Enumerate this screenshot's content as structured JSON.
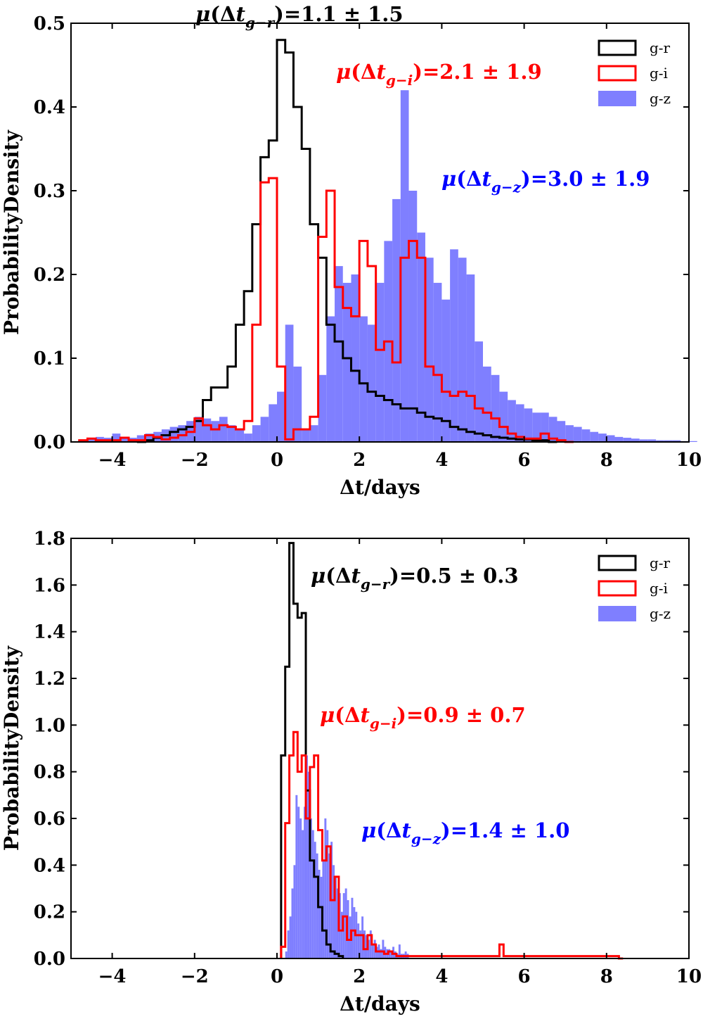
{
  "chart_data": [
    {
      "type": "histogram",
      "xlabel": "Δt/days",
      "ylabel": "ProbabilityDensity",
      "xlim": [
        -5,
        10
      ],
      "ylim": [
        0,
        0.5
      ],
      "xticks": [
        -4,
        -2,
        0,
        2,
        4,
        6,
        8,
        10
      ],
      "xtick_labels": [
        "−4",
        "−2",
        "0",
        "2",
        "4",
        "6",
        "8",
        "10"
      ],
      "yticks": [
        0.0,
        0.1,
        0.2,
        0.3,
        0.4,
        0.5
      ],
      "ytick_labels": [
        "0.0",
        "0.1",
        "0.2",
        "0.3",
        "0.4",
        "0.5"
      ],
      "legend": {
        "position": "top-right",
        "entries": [
          {
            "label": "g-r",
            "style": "step",
            "color": "#000000"
          },
          {
            "label": "g-i",
            "style": "step",
            "color": "#ff0000"
          },
          {
            "label": "g-z",
            "style": "filled",
            "color": "#7f7fff"
          }
        ]
      },
      "annotations": [
        {
          "color": "#000000",
          "sub": "g−r",
          "value": "1.1 ± 1.5"
        },
        {
          "color": "#ff0000",
          "sub": "g−i",
          "value": "2.1 ± 1.9"
        },
        {
          "color": "#0000ff",
          "sub": "g−z",
          "value": "3.0 ± 1.9"
        }
      ],
      "series": [
        {
          "name": "g-r",
          "style": "step",
          "color": "#000000",
          "x_start": -3.4,
          "bin_width": 0.2,
          "values": [
            0,
            0.002,
            0.005,
            0.008,
            0.012,
            0.015,
            0.018,
            0.025,
            0.05,
            0.065,
            0.065,
            0.09,
            0.14,
            0.18,
            0.26,
            0.34,
            0.36,
            0.48,
            0.465,
            0.4,
            0.35,
            0.26,
            0.22,
            0.14,
            0.12,
            0.1,
            0.085,
            0.07,
            0.06,
            0.055,
            0.05,
            0.045,
            0.04,
            0.04,
            0.035,
            0.03,
            0.028,
            0.025,
            0.018,
            0.015,
            0.012,
            0.01,
            0.008,
            0.006,
            0.005,
            0.004,
            0.003,
            0.003,
            0.002,
            0.002,
            0
          ]
        },
        {
          "name": "g-i",
          "style": "step",
          "color": "#ff0000",
          "x_start": -4.8,
          "bin_width": 0.2,
          "values": [
            0.002,
            0.004,
            0.002,
            0.002,
            0.002,
            0.005,
            0.002,
            0.002,
            0.008,
            0.006,
            0.003,
            0.005,
            0.008,
            0.012,
            0.028,
            0.02,
            0.015,
            0.02,
            0.018,
            0.015,
            0.025,
            0.14,
            0.31,
            0.315,
            0.09,
            0.003,
            0.015,
            0.015,
            0.03,
            0.245,
            0.3,
            0.185,
            0.16,
            0.15,
            0.24,
            0.21,
            0.11,
            0.12,
            0.095,
            0.22,
            0.24,
            0.22,
            0.09,
            0.08,
            0.06,
            0.055,
            0.06,
            0.055,
            0.04,
            0.035,
            0.028,
            0.018,
            0.01,
            0.006,
            0.004,
            0.004,
            0.01,
            0.004,
            0.002,
            0
          ]
        },
        {
          "name": "g-z",
          "style": "filled",
          "color": "#7f7fff",
          "x_start": -4.8,
          "bin_width": 0.2,
          "values": [
            0.002,
            0.004,
            0.006,
            0.005,
            0.01,
            0.006,
            0.005,
            0.008,
            0.01,
            0.012,
            0.015,
            0.018,
            0.02,
            0.025,
            0.03,
            0.028,
            0.025,
            0.03,
            0.02,
            0.015,
            0.01,
            0.02,
            0.03,
            0.045,
            0.06,
            0.14,
            0.09,
            0.015,
            0.02,
            0.08,
            0.15,
            0.21,
            0.19,
            0.2,
            0.15,
            0.14,
            0.19,
            0.24,
            0.29,
            0.42,
            0.3,
            0.25,
            0.22,
            0.19,
            0.17,
            0.23,
            0.22,
            0.2,
            0.12,
            0.09,
            0.08,
            0.06,
            0.05,
            0.045,
            0.04,
            0.035,
            0.035,
            0.03,
            0.025,
            0.02,
            0.018,
            0.015,
            0.012,
            0.01,
            0.008,
            0.006,
            0.005,
            0.004,
            0.003,
            0.003,
            0.002,
            0.002,
            0.002,
            0.001,
            0.001
          ]
        }
      ]
    },
    {
      "type": "histogram",
      "xlabel": "Δt/days",
      "ylabel": "ProbabilityDensity",
      "xlim": [
        -5,
        10
      ],
      "ylim": [
        0,
        1.8
      ],
      "xticks": [
        -4,
        -2,
        0,
        2,
        4,
        6,
        8,
        10
      ],
      "xtick_labels": [
        "−4",
        "−2",
        "0",
        "2",
        "4",
        "6",
        "8",
        "10"
      ],
      "yticks": [
        0.0,
        0.2,
        0.4,
        0.6,
        0.8,
        1.0,
        1.2,
        1.4,
        1.6,
        1.8
      ],
      "ytick_labels": [
        "0.0",
        "0.2",
        "0.4",
        "0.6",
        "0.8",
        "1.0",
        "1.2",
        "1.4",
        "1.6",
        "1.8"
      ],
      "legend": {
        "position": "top-right",
        "entries": [
          {
            "label": "g-r",
            "style": "step",
            "color": "#000000"
          },
          {
            "label": "g-i",
            "style": "step",
            "color": "#ff0000"
          },
          {
            "label": "g-z",
            "style": "filled",
            "color": "#7f7fff"
          }
        ]
      },
      "annotations": [
        {
          "color": "#000000",
          "sub": "g−r",
          "value": "0.5 ± 0.3"
        },
        {
          "color": "#ff0000",
          "sub": "g−i",
          "value": "0.9 ± 0.7"
        },
        {
          "color": "#0000ff",
          "sub": "g−z",
          "value": "1.4 ± 1.0"
        }
      ],
      "series": [
        {
          "name": "g-r",
          "style": "step",
          "color": "#000000",
          "x_start": 0.1,
          "bin_width": 0.1,
          "values": [
            0.87,
            1.25,
            1.78,
            1.52,
            1.46,
            1.48,
            0.72,
            0.42,
            0.35,
            0.22,
            0.12,
            0.06,
            0.03,
            0.02,
            0.01
          ]
        },
        {
          "name": "g-i",
          "style": "step",
          "color": "#ff0000",
          "x_start": 0.1,
          "bin_width": 0.1,
          "values": [
            0.05,
            0.58,
            0.87,
            0.97,
            0.8,
            0.87,
            0.6,
            0.82,
            0.87,
            0.55,
            0.42,
            0.48,
            0.25,
            0.35,
            0.12,
            0.18,
            0.08,
            0.12,
            0.1,
            0.1,
            0.04,
            0.1,
            0.06,
            0.03,
            0.03,
            0.02,
            0.03,
            0.02,
            0.01,
            0.01,
            0.01,
            0.01,
            0.01,
            0.01,
            0.01,
            0.01,
            0.01,
            0.01,
            0.01,
            0.01,
            0.01,
            0.01,
            0.01,
            0.01,
            0.01,
            0.01,
            0.01,
            0.01,
            0.01,
            0.01,
            0.01,
            0.01,
            0.01,
            0.06,
            0.01,
            0.01,
            0.01,
            0.01,
            0.01,
            0.01,
            0.01,
            0.01,
            0.01,
            0.01,
            0.01,
            0.01,
            0.01,
            0.01,
            0.01,
            0.01,
            0.01,
            0.01,
            0.01,
            0.01,
            0.01,
            0.01,
            0.01,
            0.01,
            0.01,
            0.01,
            0.01,
            0.01,
            0
          ]
        },
        {
          "name": "g-z",
          "style": "filled",
          "color": "#7f7fff",
          "x_start": 0.2,
          "bin_width": 0.05,
          "values": [
            0.03,
            0.12,
            0.18,
            0.3,
            0.4,
            0.7,
            0.65,
            0.6,
            0.55,
            0.65,
            0.87,
            0.8,
            0.6,
            0.55,
            0.5,
            0.45,
            0.38,
            0.35,
            0.42,
            0.6,
            0.55,
            0.45,
            0.5,
            0.4,
            0.35,
            0.3,
            0.28,
            0.2,
            0.28,
            0.3,
            0.25,
            0.18,
            0.26,
            0.22,
            0.2,
            0.15,
            0.12,
            0.18,
            0.12,
            0.1,
            0.08,
            0.12,
            0.06,
            0.08,
            0.05,
            0.06,
            0.04,
            0.08,
            0.05,
            0.04,
            0.04,
            0.03,
            0.05,
            0.03,
            0.02,
            0.06,
            0.02,
            0.02,
            0.03,
            0.02
          ]
        }
      ]
    }
  ]
}
